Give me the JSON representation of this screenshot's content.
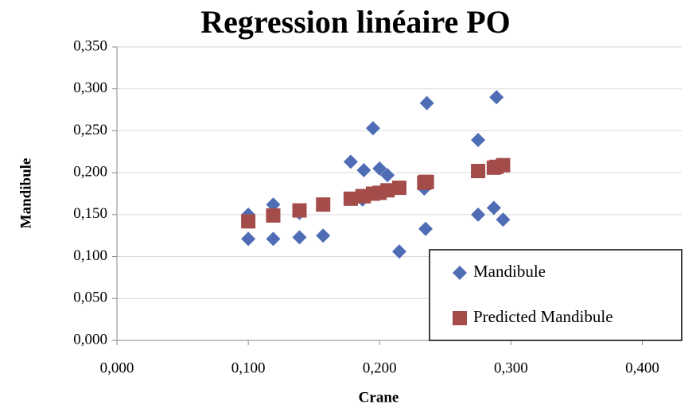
{
  "chart_data": {
    "type": "scatter",
    "title": "Regression linéaire PO",
    "x_label": "Crane",
    "y_label": "Mandibule",
    "xlim": [
      0,
      0.43
    ],
    "ylim": [
      0,
      0.35
    ],
    "xticks": [
      {
        "value": 0,
        "label": "0,000"
      },
      {
        "value": 0.1,
        "label": "0,100"
      },
      {
        "value": 0.2,
        "label": "0,200"
      },
      {
        "value": 0.3,
        "label": "0,300"
      },
      {
        "value": 0.4,
        "label": "0,400"
      }
    ],
    "yticks": [
      {
        "value": 0,
        "label": "0,000"
      },
      {
        "value": 0.05,
        "label": "0,050"
      },
      {
        "value": 0.1,
        "label": "0,100"
      },
      {
        "value": 0.15,
        "label": "0,150"
      },
      {
        "value": 0.2,
        "label": "0,200"
      },
      {
        "value": 0.25,
        "label": "0,250"
      },
      {
        "value": 0.3,
        "label": "0,300"
      },
      {
        "value": 0.35,
        "label": "0,350"
      }
    ],
    "grid": true,
    "legend": "bottom-right",
    "series": [
      {
        "name": "Mandibule",
        "color": "#4f6db5",
        "marker": "diamond",
        "x": [
          0.1,
          0.1,
          0.119,
          0.119,
          0.139,
          0.139,
          0.157,
          0.178,
          0.187,
          0.188,
          0.195,
          0.2,
          0.206,
          0.215,
          0.234,
          0.236,
          0.235,
          0.275,
          0.275,
          0.289,
          0.287,
          0.294
        ],
        "y": [
          0.15,
          0.121,
          0.162,
          0.121,
          0.152,
          0.123,
          0.125,
          0.213,
          0.168,
          0.203,
          0.253,
          0.205,
          0.197,
          0.106,
          0.181,
          0.283,
          0.133,
          0.239,
          0.15,
          0.29,
          0.158,
          0.144
        ]
      },
      {
        "name": "Predicted Mandibule",
        "color": "#a34c4a",
        "marker": "square",
        "x": [
          0.1,
          0.119,
          0.139,
          0.157,
          0.178,
          0.187,
          0.188,
          0.195,
          0.2,
          0.206,
          0.215,
          0.234,
          0.236,
          0.235,
          0.275,
          0.289,
          0.287,
          0.294
        ],
        "y": [
          0.142,
          0.149,
          0.155,
          0.162,
          0.169,
          0.172,
          0.172,
          0.175,
          0.176,
          0.179,
          0.182,
          0.188,
          0.189,
          0.189,
          0.202,
          0.207,
          0.206,
          0.209
        ]
      }
    ]
  }
}
